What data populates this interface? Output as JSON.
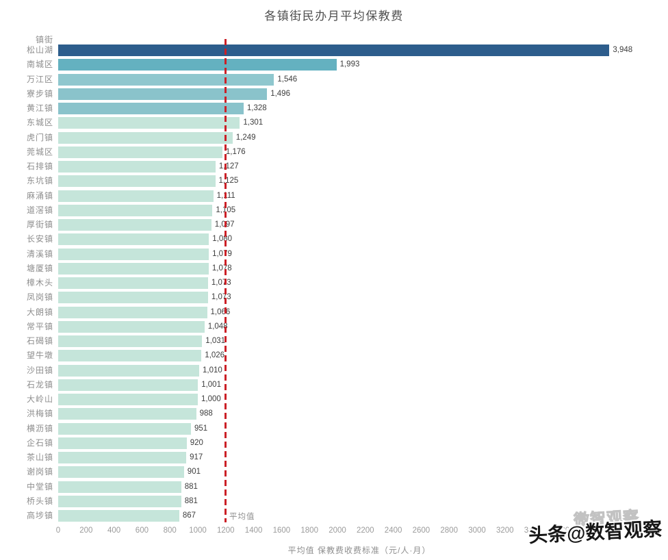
{
  "chart_data": {
    "type": "bar",
    "orientation": "horizontal",
    "title": "各镇街民办月平均保教费",
    "ylabel": "镇街",
    "xlabel": "平均值 保教费收费标准（元/人·月）",
    "xlim": [
      0,
      4368
    ],
    "grid": false,
    "legend": null,
    "x_ticks": [
      0,
      200,
      400,
      600,
      800,
      1000,
      1200,
      1400,
      1600,
      1800,
      2000,
      2200,
      2400,
      2600,
      2800,
      3000,
      3200,
      3400,
      3600,
      3800,
      4000,
      4200
    ],
    "categories": [
      "松山湖",
      "南城区",
      "万江区",
      "寮步镇",
      "黄江镇",
      "东城区",
      "虎门镇",
      "莞城区",
      "石排镇",
      "东坑镇",
      "麻涌镇",
      "道滘镇",
      "厚街镇",
      "长安镇",
      "清溪镇",
      "塘厦镇",
      "樟木头",
      "凤岗镇",
      "大朗镇",
      "常平镇",
      "石碣镇",
      "望牛墩",
      "沙田镇",
      "石龙镇",
      "大岭山",
      "洪梅镇",
      "横沥镇",
      "企石镇",
      "茶山镇",
      "谢岗镇",
      "中堂镇",
      "桥头镇",
      "高埗镇"
    ],
    "values": [
      3948,
      1993,
      1546,
      1496,
      1328,
      1301,
      1249,
      1176,
      1127,
      1125,
      1111,
      1105,
      1097,
      1080,
      1079,
      1078,
      1073,
      1073,
      1066,
      1048,
      1031,
      1026,
      1010,
      1001,
      1000,
      988,
      951,
      920,
      917,
      901,
      881,
      881,
      867
    ],
    "value_labels": [
      "3,948",
      "1,993",
      "1,546",
      "1,496",
      "1,328",
      "1,301",
      "1,249",
      "1,176",
      "1,127",
      "1,125",
      "1,111",
      "1,105",
      "1,097",
      "1,080",
      "1,079",
      "1,078",
      "1,073",
      "1,073",
      "1,066",
      "1,048",
      "1,031",
      "1,026",
      "1,010",
      "1,001",
      "1,000",
      "988",
      "951",
      "920",
      "917",
      "901",
      "881",
      "881",
      "867"
    ],
    "bar_colors": [
      "#2d5d8c",
      "#64b1c0",
      "#8fc7ce",
      "#8ac3cb",
      "#8ac3cb",
      "#c5e5da",
      "#c5e5da",
      "#c5e5da",
      "#c5e5da",
      "#c5e5da",
      "#c5e5da",
      "#c5e5da",
      "#c5e5da",
      "#c5e5da",
      "#c5e5da",
      "#c5e5da",
      "#c5e5da",
      "#c5e5da",
      "#c5e5da",
      "#c5e5da",
      "#c5e5da",
      "#c5e5da",
      "#c5e5da",
      "#c5e5da",
      "#c5e5da",
      "#c5e5da",
      "#c5e5da",
      "#c5e5da",
      "#c5e5da",
      "#c5e5da",
      "#c5e5da",
      "#c5e5da",
      "#c5e5da"
    ],
    "average_line": {
      "value": 1196,
      "label": "平均值",
      "color": "#cb2027"
    }
  },
  "watermark": {
    "text": "头条@数智观察",
    "ghost_text": "微智观察"
  }
}
